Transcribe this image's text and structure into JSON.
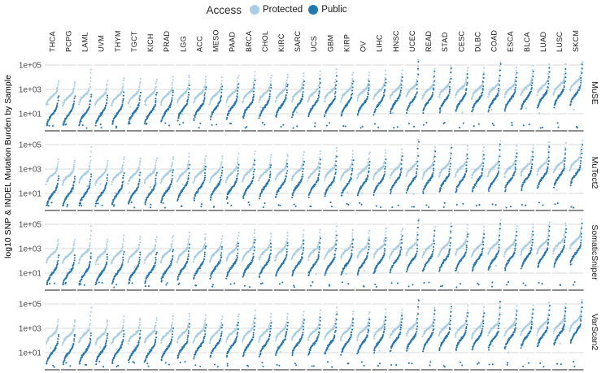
{
  "chart_data": {
    "type": "scatter",
    "title": "",
    "ylabel": "log10 SNP & INDEL Mutation Burden by Sample",
    "y_ticks": {
      "labels": [
        "1e+05",
        "1e+03",
        "1e+01"
      ],
      "log10_values": [
        5,
        3,
        1
      ]
    },
    "ylim_log10": [
      -0.45,
      5.8
    ],
    "grid": "horizontal major gridlines per panel, light gray; dark gray baseline at panel bottom",
    "legend": {
      "title": "Access",
      "position": "top-center",
      "entries": [
        {
          "label": "Protected",
          "color": "#a8cee4"
        },
        {
          "label": "Public",
          "color": "#2277b4"
        }
      ]
    },
    "facet_rows": [
      "MuSE",
      "MuTect2",
      "SomaticSniper",
      "VarScan2"
    ],
    "categories": [
      "THCA",
      "PCPG",
      "LAML",
      "UVM",
      "THYM",
      "TGCT",
      "KICH",
      "PRAD",
      "LGG",
      "ACC",
      "MESO",
      "PAAD",
      "BRCA",
      "CHOL",
      "KIRC",
      "SARC",
      "UCS",
      "GBM",
      "KIRP",
      "OV",
      "LIHC",
      "HNSC",
      "UCEC",
      "READ",
      "STAD",
      "CESC",
      "DLBC",
      "COAD",
      "ESCA",
      "BLCA",
      "LUAD",
      "LUSC",
      "SKCM"
    ],
    "samples_per_group": 42,
    "series": [
      {
        "name": "Protected",
        "color": "#a8cee4",
        "spread_log10": 0.22,
        "median_log10": [
          2.45,
          2.4,
          2.55,
          2.4,
          2.45,
          2.5,
          2.5,
          2.55,
          2.6,
          2.6,
          2.6,
          2.65,
          2.7,
          2.7,
          2.75,
          2.75,
          2.75,
          2.8,
          2.8,
          2.85,
          2.9,
          2.95,
          3.1,
          3.0,
          3.1,
          3.1,
          3.0,
          3.15,
          3.1,
          3.2,
          3.3,
          3.35,
          3.6
        ],
        "top_tail_log10": [
          0.5,
          0.5,
          1.5,
          0.5,
          0.8,
          0.6,
          0.6,
          0.7,
          0.9,
          0.7,
          0.6,
          0.8,
          1.0,
          0.7,
          0.7,
          0.9,
          1.0,
          1.2,
          0.9,
          0.8,
          0.9,
          0.9,
          1.6,
          1.0,
          1.2,
          1.0,
          1.0,
          1.4,
          1.0,
          1.0,
          1.1,
          1.0,
          1.0
        ]
      },
      {
        "name": "Public",
        "color": "#2277b4",
        "spread_log10": 0.34,
        "median_log10": [
          0.95,
          0.95,
          1.0,
          1.0,
          1.05,
          1.1,
          1.1,
          1.25,
          1.4,
          1.45,
          1.5,
          1.55,
          1.6,
          1.6,
          1.65,
          1.7,
          1.7,
          1.75,
          1.75,
          1.8,
          1.9,
          2.0,
          2.05,
          2.05,
          2.1,
          2.1,
          2.1,
          2.15,
          2.2,
          2.3,
          2.4,
          2.5,
          2.65
        ],
        "top_tail_log10": [
          0.3,
          0.3,
          0.4,
          0.3,
          0.5,
          0.4,
          0.4,
          0.5,
          0.8,
          0.6,
          0.5,
          0.7,
          1.0,
          0.6,
          0.6,
          0.8,
          1.0,
          1.2,
          0.8,
          0.7,
          0.8,
          0.9,
          2.2,
          1.3,
          1.6,
          1.0,
          1.0,
          1.9,
          1.0,
          1.0,
          1.3,
          1.0,
          1.3
        ]
      }
    ],
    "row_adjust_log10": {
      "MuSE": {
        "Protected": 0.0,
        "Public": 0.0
      },
      "MuTect2": {
        "Protected": 0.05,
        "Public": -0.05
      },
      "SomaticSniper": {
        "Protected": 0.1,
        "Public": 0.0
      },
      "VarScan2": {
        "Protected": 0.0,
        "Public": 0.05
      }
    }
  }
}
